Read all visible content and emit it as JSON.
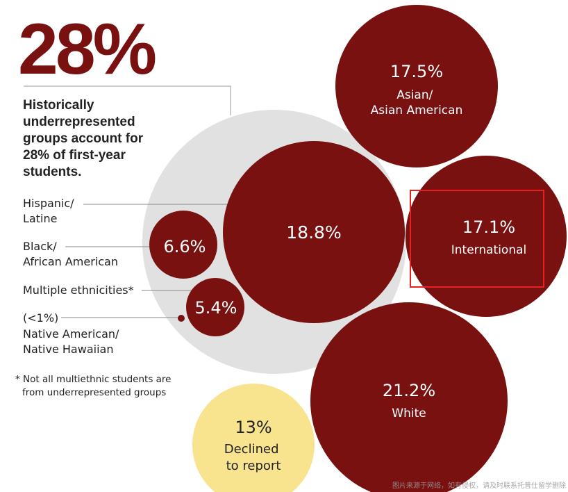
{
  "big_stat": "28%",
  "headline": [
    "Historically",
    "underrepresented",
    "groups account for",
    "28% of first-year",
    "students."
  ],
  "footnote": [
    "* Not all multiethnic students are",
    "from underrepresented groups"
  ],
  "watermark": "图片来源于网络，如有侵权，请及时联系托普仕留学删除",
  "colors": {
    "accent": "#7a1111",
    "group_bg": "#e1e1e1",
    "declined": "#f8e38f",
    "highlight_box": "#e8201f",
    "text_dark": "#222222",
    "bubble_text": "#ffffff"
  },
  "chart_data": {
    "type": "bubble",
    "title": "28%",
    "unit": "% of first-year students",
    "highlighted_category": "International",
    "categories": [
      {
        "key": "asian",
        "value": 17.5,
        "value_label": "17.5%",
        "label_lines": [
          "Asian/",
          "Asian American"
        ]
      },
      {
        "key": "international",
        "value": 17.1,
        "value_label": "17.1%",
        "label_lines": [
          "International"
        ]
      },
      {
        "key": "white",
        "value": 21.2,
        "value_label": "21.2%",
        "label_lines": [
          "White"
        ]
      },
      {
        "key": "declined",
        "value": 13,
        "value_label": "13%",
        "label_lines": [
          "Declined",
          "to report"
        ]
      },
      {
        "key": "hispanic",
        "value": 18.8,
        "value_label": "18.8%",
        "label_lines": [
          "Hispanic/",
          "Latine"
        ],
        "underrepresented": true
      },
      {
        "key": "black",
        "value": 6.6,
        "value_label": "6.6%",
        "label_lines": [
          "Black/",
          "African American"
        ],
        "underrepresented": true
      },
      {
        "key": "multiple",
        "value": 5.4,
        "value_label": "5.4%",
        "label_lines": [
          "Multiple ethnicities*"
        ],
        "underrepresented": true
      },
      {
        "key": "native",
        "value": 1,
        "value_label": "(<1%)",
        "label_lines": [
          "(<1%)",
          "Native American/",
          "Native Hawaiian"
        ],
        "underrepresented": true
      }
    ]
  }
}
